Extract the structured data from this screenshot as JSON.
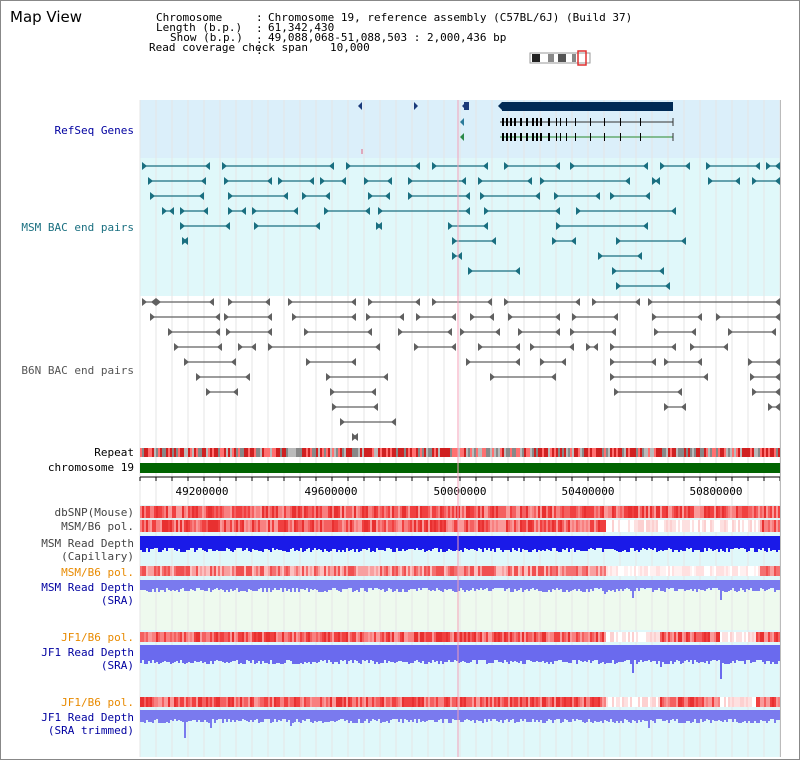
{
  "title": "Map View",
  "header": {
    "rows": [
      {
        "label": "Chromosome",
        "value": "Chromosome 19, reference assembly (C57BL/6J) (Build 37)"
      },
      {
        "label": "Length (b.p.)",
        "value": "61,342,430"
      },
      {
        "label": "Show (b.p.)",
        "value": "49,088,068-51,088,503 : 2,000,436 bp"
      },
      {
        "label": "Read coverage check span",
        "value": "10,000"
      }
    ]
  },
  "tracks": {
    "refseq_label": "RefSeq Genes",
    "msm_bac_label": "MSM BAC end pairs",
    "b6n_bac_label": "B6N BAC end pairs",
    "repeat_label": "Repeat",
    "chromosome_label": "chromosome 19",
    "dbsnp_label": "dbSNP(Mouse)",
    "msm_b6_pol_label": "MSM/B6 pol.",
    "msm_depth_cap_label_1": "MSM Read Depth",
    "msm_depth_cap_label_2": "(Capillary)",
    "msm_b6_pol2_label": "MSM/B6 pol.",
    "msm_depth_sra_label_1": "MSM Read Depth",
    "msm_depth_sra_label_2": "(SRA)",
    "jf1_pol_label": "JF1/B6 pol.",
    "jf1_depth_label_1": "JF1 Read Depth",
    "jf1_depth_label_2": "(SRA)",
    "jf1_pol2_label": "JF1/B6 pol.",
    "jf1_trim_label_1": "JF1 Read Depth",
    "jf1_trim_label_2": "(SRA trimmed)"
  },
  "axis": {
    "ticks": [
      "49200000",
      "49600000",
      "50000000",
      "50400000",
      "50800000"
    ]
  },
  "colors": {
    "refseq_bg": "#dbeffa",
    "msm_bg": "#e0f8fa",
    "gene_dark": "#002a55",
    "msm_line": "#1a6f80",
    "b6n_line": "#606060",
    "chromosome": "#006400",
    "dark_blue_label": "#0000a0",
    "orange_label": "#e88a00",
    "depth_blue": "#1a1ae8",
    "depth_light": "#7a7aee",
    "snp_red": "#f03030"
  }
}
